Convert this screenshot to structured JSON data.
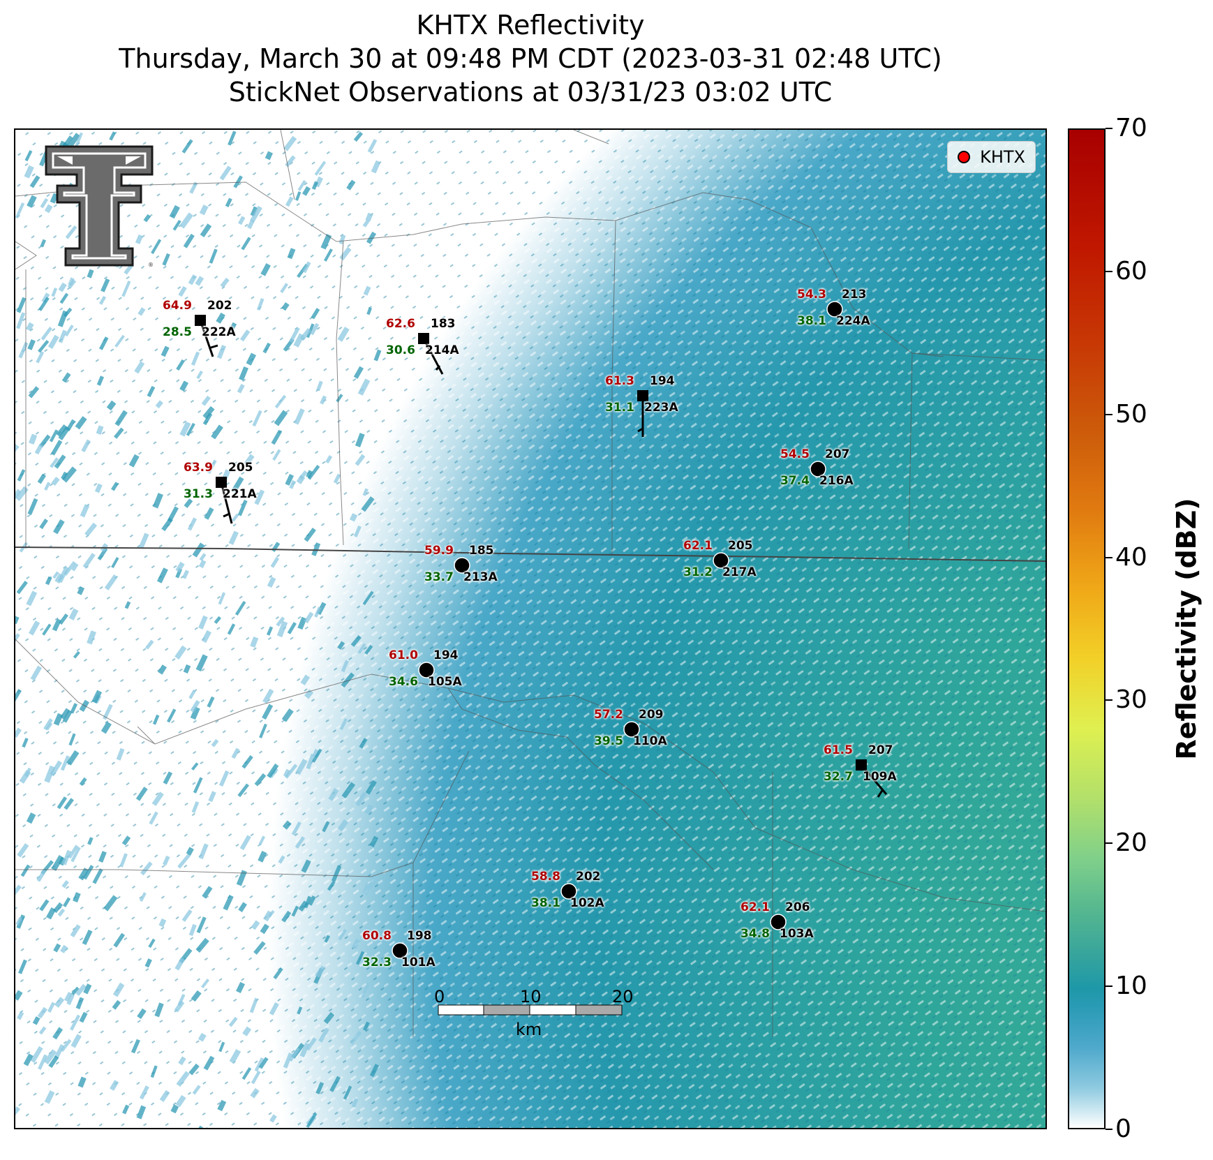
{
  "title": {
    "line1": "KHTX Reflectivity",
    "line2": "Thursday, March 30 at 09:48 PM CDT (2023-03-31 02:48 UTC)",
    "line3": "StickNet Observations at 03/31/23 03:02 UTC"
  },
  "legend": {
    "label": "KHTX",
    "marker_color": "#ff0000"
  },
  "colorbar": {
    "title": "Reflectivity (dBZ)",
    "min": 0,
    "max": 70,
    "ticks": [
      "0",
      "10",
      "20",
      "30",
      "40",
      "50",
      "60",
      "70"
    ]
  },
  "scalebar": {
    "labels": [
      "0",
      "10",
      "20"
    ],
    "unit": "km"
  },
  "colors": {
    "reflectivity_text": "#b00000",
    "temperature_text": "#006400",
    "radar_fill": "#2a9db0"
  },
  "stations": [
    {
      "id": "222A",
      "refl": "64.9",
      "temp": "28.5",
      "dir": "202",
      "marker": "square"
    },
    {
      "id": "214A",
      "refl": "62.6",
      "temp": "30.6",
      "dir": "183",
      "marker": "square"
    },
    {
      "id": "223A",
      "refl": "61.3",
      "temp": "31.1",
      "dir": "194",
      "marker": "square"
    },
    {
      "id": "224A",
      "refl": "54.3",
      "temp": "38.1",
      "dir": "213",
      "marker": "circle"
    },
    {
      "id": "221A",
      "refl": "63.9",
      "temp": "31.3",
      "dir": "205",
      "marker": "square"
    },
    {
      "id": "216A",
      "refl": "54.5",
      "temp": "37.4",
      "dir": "207",
      "marker": "circle"
    },
    {
      "id": "213A",
      "refl": "59.9",
      "temp": "33.7",
      "dir": "185",
      "marker": "circle"
    },
    {
      "id": "217A",
      "refl": "62.1",
      "temp": "31.2",
      "dir": "205",
      "marker": "circle"
    },
    {
      "id": "105A",
      "refl": "61.0",
      "temp": "34.6",
      "dir": "194",
      "marker": "circle"
    },
    {
      "id": "110A",
      "refl": "57.2",
      "temp": "39.5",
      "dir": "209",
      "marker": "circle"
    },
    {
      "id": "109A",
      "refl": "61.5",
      "temp": "32.7",
      "dir": "207",
      "marker": "square"
    },
    {
      "id": "102A",
      "refl": "58.8",
      "temp": "38.1",
      "dir": "202",
      "marker": "circle"
    },
    {
      "id": "103A",
      "refl": "62.1",
      "temp": "34.8",
      "dir": "206",
      "marker": "circle"
    },
    {
      "id": "101A",
      "refl": "60.8",
      "temp": "32.3",
      "dir": "198",
      "marker": "circle"
    }
  ]
}
